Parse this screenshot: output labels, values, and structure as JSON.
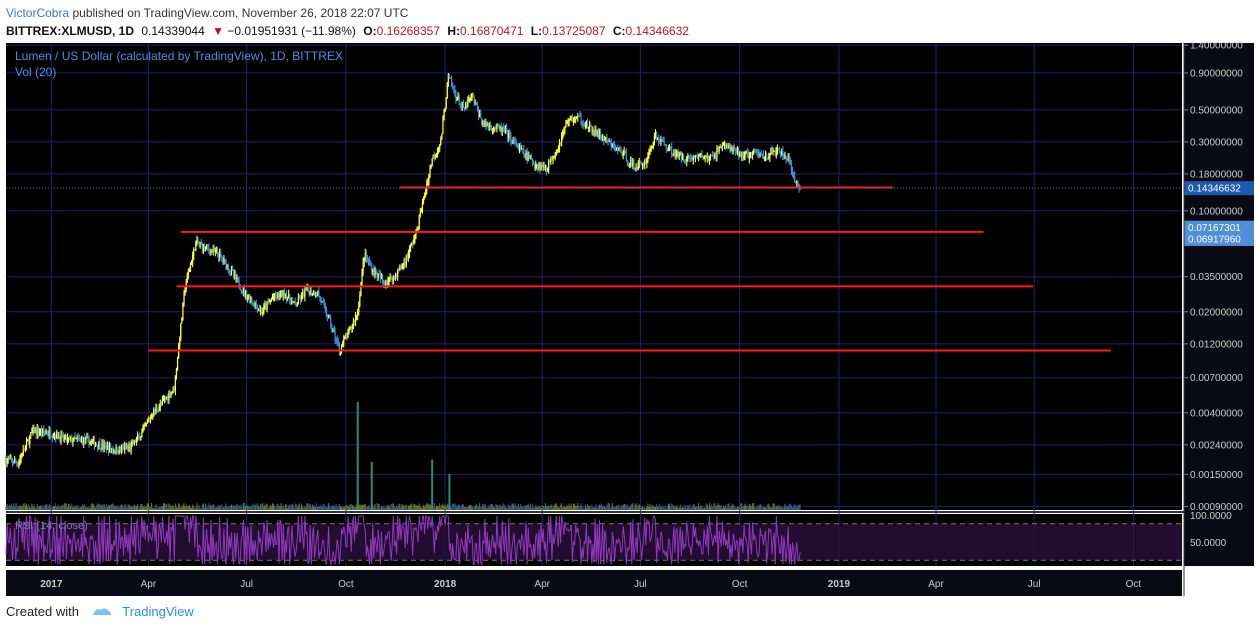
{
  "header": {
    "author": "VictorCobra",
    "published_text": "published on TradingView.com, November 26, 2018 22:07 UTC",
    "symbol": "BITTREX:XLMUSD, 1D",
    "last": "0.14339044",
    "change_arrow": "▼",
    "change": "−0.01951931 (−11.98%)",
    "ohlc": [
      {
        "label": "O:",
        "value": "0.16268357"
      },
      {
        "label": "H:",
        "value": "0.16870471"
      },
      {
        "label": "L:",
        "value": "0.13725087"
      },
      {
        "label": "C:",
        "value": "0.14346632"
      }
    ]
  },
  "footer": {
    "created_with": "Created with",
    "brand": "TradingView"
  },
  "colors": {
    "background": "#000000",
    "grid": "#21216a",
    "up_candle": "#ffff33",
    "down_candle": "#3b8fe0",
    "hline": "#ff1a1a",
    "rsi": "#8c3ab8",
    "rsi_band": "#2a0f3c",
    "axis_text": "#cccccc",
    "price_label_bg": "#1e5ab0",
    "price_label_bg2": "#4f8fd8"
  },
  "chart_data": {
    "type": "candlestick",
    "title": "Lumen / US Dollar (calculated by TradingView), 1D, BITTREX",
    "volume_label": "Vol (20)",
    "rsi_label": "RSI (14, close)",
    "y_scale": "log",
    "ylim": [
      0.00085,
      1.45
    ],
    "y_ticks": [
      "1.40000000",
      "0.90000000",
      "0.50000000",
      "0.30000000",
      "0.18000000",
      "0.10000000",
      "0.07167301",
      "0.06917960",
      "0.03500000",
      "0.02000000",
      "0.01200000",
      "0.00700000",
      "0.00400000",
      "0.00240000",
      "0.00150000",
      "0.00090000"
    ],
    "y_tick_values": [
      1.4,
      0.9,
      0.5,
      0.3,
      0.18,
      0.1,
      0.07167301,
      0.0691796,
      0.035,
      0.02,
      0.012,
      0.007,
      0.004,
      0.0024,
      0.0015,
      0.0009
    ],
    "price_labels": [
      {
        "text": "0.14346632",
        "value": 0.14346632
      },
      {
        "text": "0.07167301",
        "value": 0.07167301
      },
      {
        "text": "0.06917960",
        "value": 0.0691796
      }
    ],
    "rsi_ticks": [
      "100.0000",
      "50.0000"
    ],
    "rsi_tick_values": [
      100,
      50
    ],
    "x_ticks": [
      "2017",
      "Apr",
      "Jul",
      "Oct",
      "2018",
      "Apr",
      "Jul",
      "Oct",
      "2019",
      "Apr",
      "Jul",
      "Oct"
    ],
    "x_tick_dates": [
      "2017-01-01",
      "2017-04-01",
      "2017-07-01",
      "2017-10-01",
      "2018-01-01",
      "2018-04-01",
      "2018-07-01",
      "2018-10-01",
      "2019-01-01",
      "2019-04-01",
      "2019-07-01",
      "2019-10-01"
    ],
    "x_range": [
      "2016-11-20",
      "2019-11-15"
    ],
    "horizontal_lines": [
      {
        "value": 0.145,
        "from": "2017-11-20",
        "to": "2019-02-20"
      },
      {
        "value": 0.0715,
        "from": "2017-05-01",
        "to": "2019-05-15"
      },
      {
        "value": 0.03,
        "from": "2017-04-27",
        "to": "2019-06-30"
      },
      {
        "value": 0.0108,
        "from": "2017-04-01",
        "to": "2019-09-10"
      }
    ],
    "price_path": [
      [
        "2016-11-20",
        0.0019
      ],
      [
        "2016-12-01",
        0.0018
      ],
      [
        "2016-12-15",
        0.003
      ],
      [
        "2017-01-01",
        0.0029
      ],
      [
        "2017-01-15",
        0.0026
      ],
      [
        "2017-02-01",
        0.0026
      ],
      [
        "2017-02-15",
        0.0024
      ],
      [
        "2017-03-01",
        0.0022
      ],
      [
        "2017-03-15",
        0.0023
      ],
      [
        "2017-03-25",
        0.0028
      ],
      [
        "2017-04-05",
        0.004
      ],
      [
        "2017-04-15",
        0.0048
      ],
      [
        "2017-04-25",
        0.006
      ],
      [
        "2017-05-05",
        0.03
      ],
      [
        "2017-05-15",
        0.06
      ],
      [
        "2017-05-25",
        0.055
      ],
      [
        "2017-06-05",
        0.05
      ],
      [
        "2017-06-15",
        0.04
      ],
      [
        "2017-06-25",
        0.03
      ],
      [
        "2017-07-05",
        0.024
      ],
      [
        "2017-07-15",
        0.02
      ],
      [
        "2017-07-25",
        0.025
      ],
      [
        "2017-08-05",
        0.027
      ],
      [
        "2017-08-15",
        0.022
      ],
      [
        "2017-08-25",
        0.028
      ],
      [
        "2017-09-05",
        0.027
      ],
      [
        "2017-09-15",
        0.018
      ],
      [
        "2017-09-25",
        0.011
      ],
      [
        "2017-10-05",
        0.015
      ],
      [
        "2017-10-12",
        0.02
      ],
      [
        "2017-10-18",
        0.05
      ],
      [
        "2017-10-25",
        0.04
      ],
      [
        "2017-11-05",
        0.032
      ],
      [
        "2017-11-15",
        0.035
      ],
      [
        "2017-11-25",
        0.045
      ],
      [
        "2017-12-05",
        0.07
      ],
      [
        "2017-12-12",
        0.12
      ],
      [
        "2017-12-20",
        0.23
      ],
      [
        "2017-12-28",
        0.3
      ],
      [
        "2018-01-04",
        0.85
      ],
      [
        "2018-01-10",
        0.65
      ],
      [
        "2018-01-18",
        0.5
      ],
      [
        "2018-01-26",
        0.62
      ],
      [
        "2018-02-05",
        0.4
      ],
      [
        "2018-02-15",
        0.38
      ],
      [
        "2018-02-25",
        0.36
      ],
      [
        "2018-03-05",
        0.3
      ],
      [
        "2018-03-15",
        0.25
      ],
      [
        "2018-03-25",
        0.21
      ],
      [
        "2018-04-05",
        0.2
      ],
      [
        "2018-04-15",
        0.27
      ],
      [
        "2018-04-25",
        0.43
      ],
      [
        "2018-05-05",
        0.44
      ],
      [
        "2018-05-15",
        0.37
      ],
      [
        "2018-05-25",
        0.33
      ],
      [
        "2018-06-05",
        0.28
      ],
      [
        "2018-06-15",
        0.25
      ],
      [
        "2018-06-25",
        0.2
      ],
      [
        "2018-07-05",
        0.215
      ],
      [
        "2018-07-15",
        0.33
      ],
      [
        "2018-07-25",
        0.28
      ],
      [
        "2018-08-05",
        0.24
      ],
      [
        "2018-08-15",
        0.23
      ],
      [
        "2018-08-25",
        0.24
      ],
      [
        "2018-09-05",
        0.23
      ],
      [
        "2018-09-15",
        0.29
      ],
      [
        "2018-09-25",
        0.26
      ],
      [
        "2018-10-05",
        0.24
      ],
      [
        "2018-10-15",
        0.25
      ],
      [
        "2018-10-25",
        0.24
      ],
      [
        "2018-11-05",
        0.26
      ],
      [
        "2018-11-15",
        0.23
      ],
      [
        "2018-11-20",
        0.165
      ],
      [
        "2018-11-26",
        0.1435
      ]
    ],
    "volume_spikes": [
      {
        "date": "2017-10-12",
        "level": 0.9
      },
      {
        "date": "2017-10-25",
        "level": 0.4
      },
      {
        "date": "2017-12-20",
        "level": 0.42
      },
      {
        "date": "2018-01-05",
        "level": 0.3
      }
    ]
  }
}
